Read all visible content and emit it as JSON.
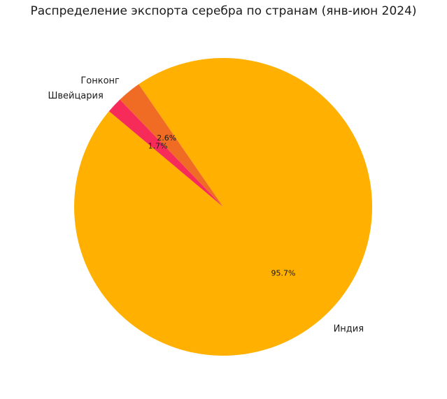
{
  "chart_data": {
    "type": "pie",
    "title": "Распределение экспорта серебра по странам (янв-июн 2024)",
    "start_angle_deg": 140,
    "direction": "counterclockwise",
    "slices": [
      {
        "label": "Индия",
        "value": 95.7,
        "pct_label": "95.7%",
        "color": "#FFB000"
      },
      {
        "label": "Гонконг",
        "value": 2.6,
        "pct_label": "2.6%",
        "color": "#F06C24"
      },
      {
        "label": "Швейцария",
        "value": 1.7,
        "pct_label": "1.7%",
        "color": "#F72B5A"
      }
    ]
  }
}
